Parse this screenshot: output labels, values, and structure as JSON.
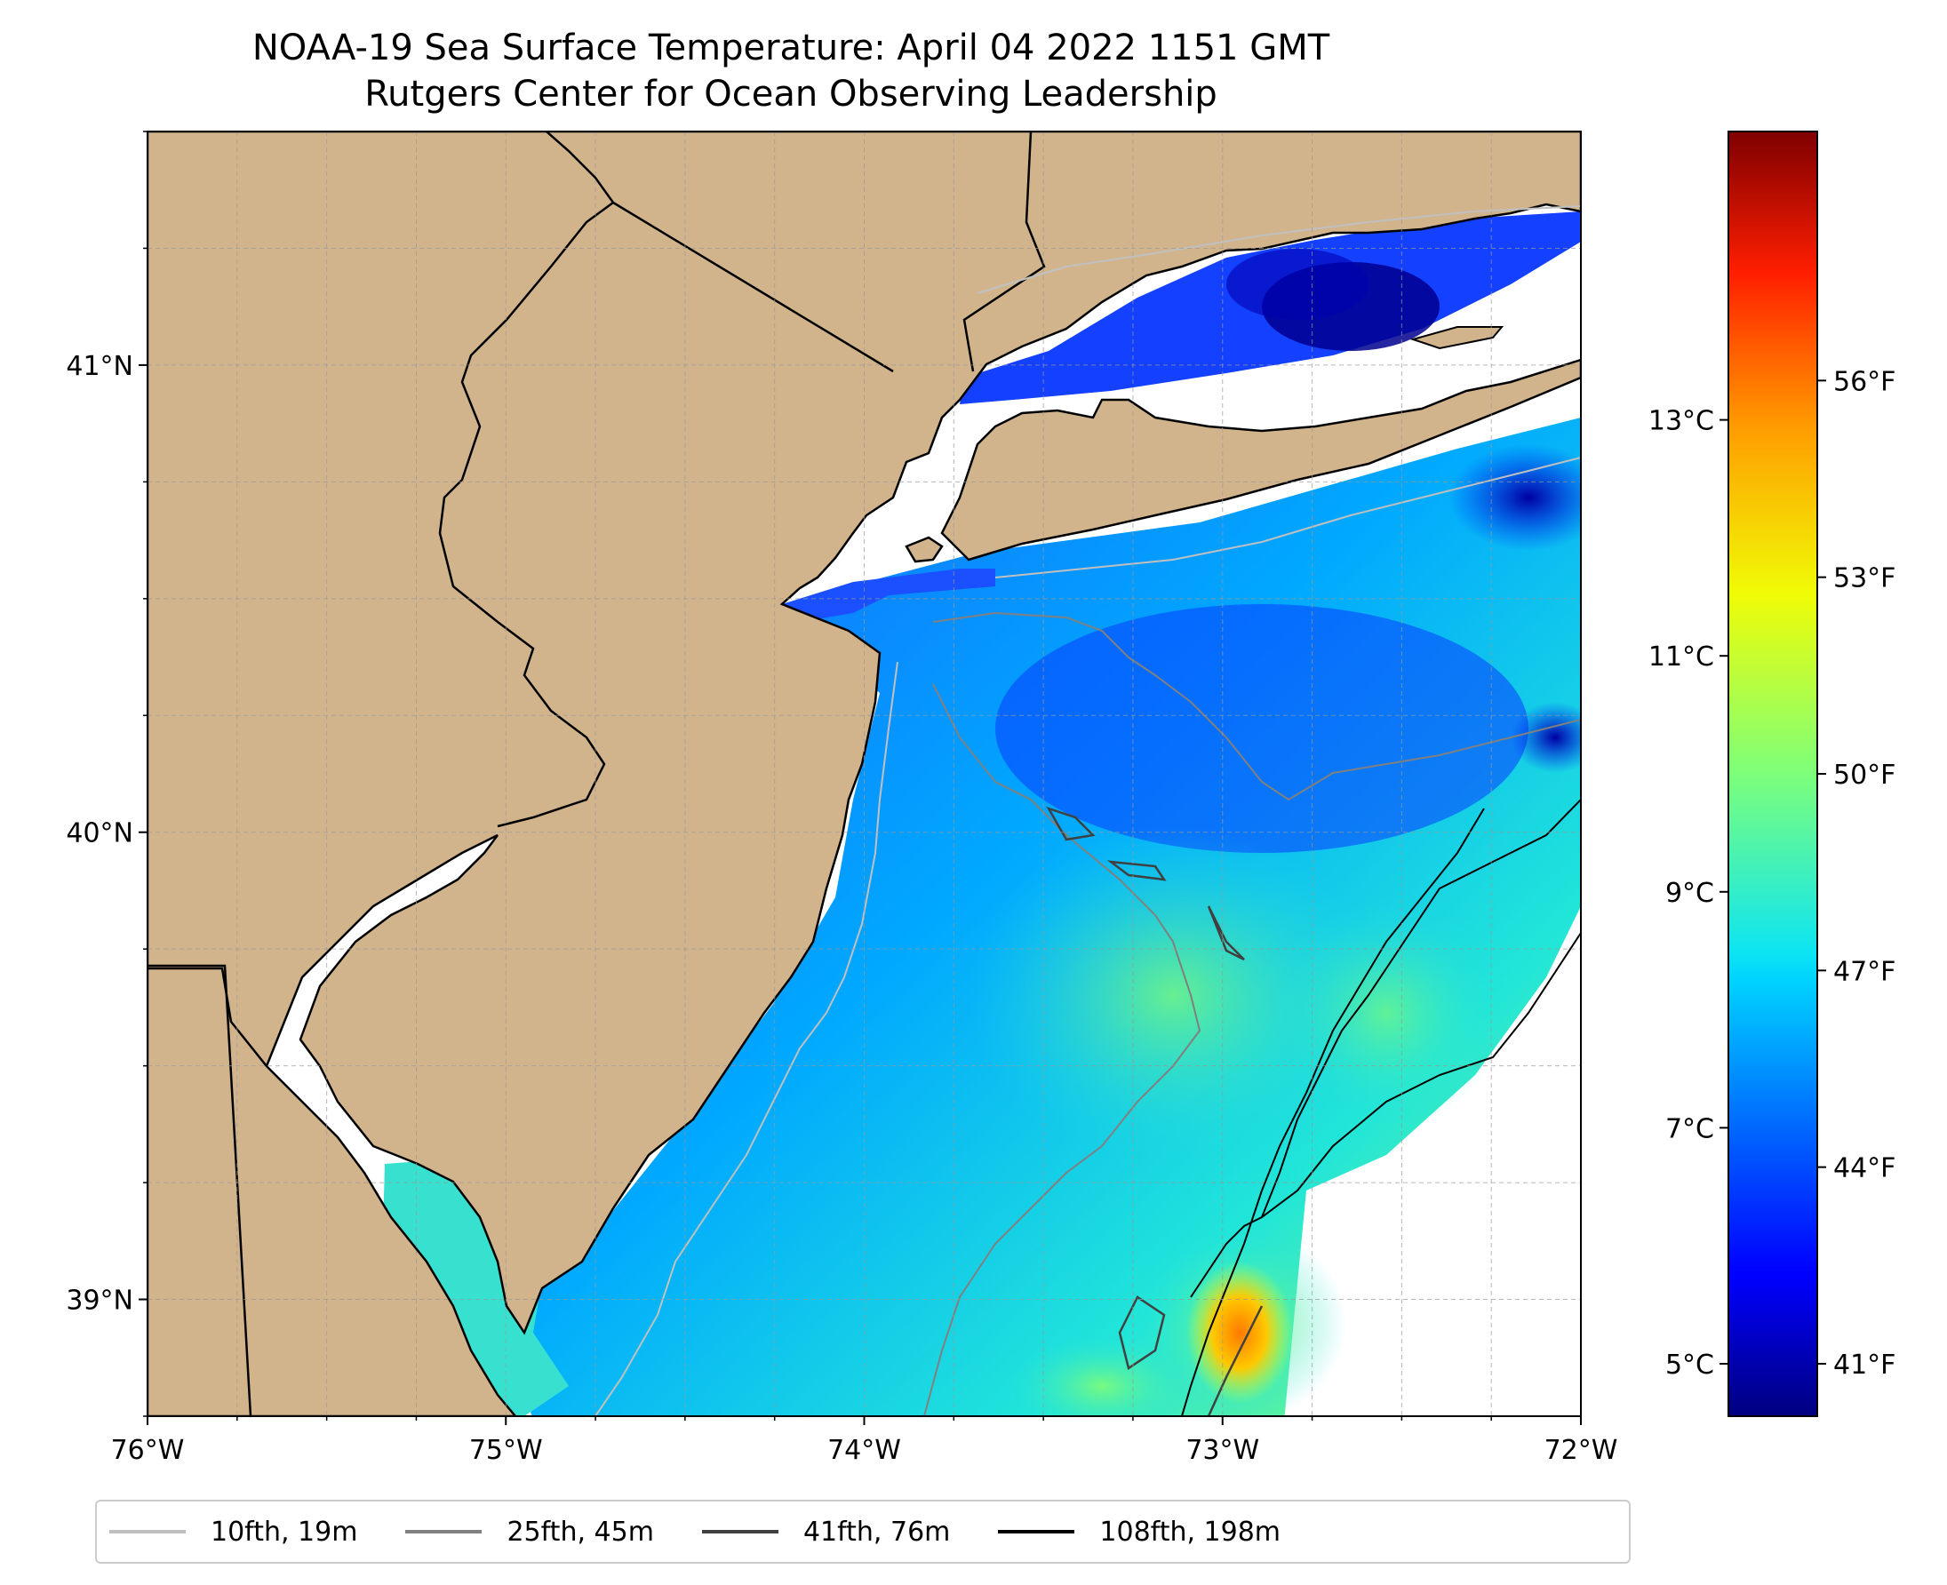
{
  "title": {
    "line1": "NOAA-19 Sea Surface Temperature: April 04 2022 1151 GMT",
    "line2": "Rutgers Center for Ocean Observing Leadership"
  },
  "map": {
    "lon_range": [
      -76,
      -72
    ],
    "lat_range": [
      38.75,
      41.5
    ],
    "x_ticks": [
      {
        "value": -76,
        "label": "76°W"
      },
      {
        "value": -75,
        "label": "75°W"
      },
      {
        "value": -74,
        "label": "74°W"
      },
      {
        "value": -73,
        "label": "73°W"
      },
      {
        "value": -72,
        "label": "72°W"
      }
    ],
    "y_ticks": [
      {
        "value": 41,
        "label": "41°N"
      },
      {
        "value": 40,
        "label": "40°N"
      },
      {
        "value": 39,
        "label": "39°N"
      }
    ],
    "gridlines": true,
    "land_color": "#d2b48c",
    "colormap": "jet"
  },
  "colorbar": {
    "celsius_ticks": [
      {
        "value": 5,
        "label": "5°C"
      },
      {
        "value": 7,
        "label": "7°C"
      },
      {
        "value": 9,
        "label": "9°C"
      },
      {
        "value": 11,
        "label": "11°C"
      },
      {
        "value": 13,
        "label": "13°C"
      }
    ],
    "fahrenheit_ticks": [
      {
        "value": 41,
        "label": "41°F"
      },
      {
        "value": 44,
        "label": "44°F"
      },
      {
        "value": 47,
        "label": "47°F"
      },
      {
        "value": 50,
        "label": "50°F"
      },
      {
        "value": 53,
        "label": "53°F"
      },
      {
        "value": 56,
        "label": "56°F"
      }
    ],
    "range_f": [
      40.2,
      59.8
    ]
  },
  "legend": {
    "placement": "bottom",
    "items": [
      {
        "label": "10fth, 19m",
        "color": "#c0c0c0"
      },
      {
        "label": "25fth, 45m",
        "color": "#808080"
      },
      {
        "label": "41fth, 76m",
        "color": "#404040"
      },
      {
        "label": "108fth, 198m",
        "color": "#000000"
      }
    ]
  }
}
